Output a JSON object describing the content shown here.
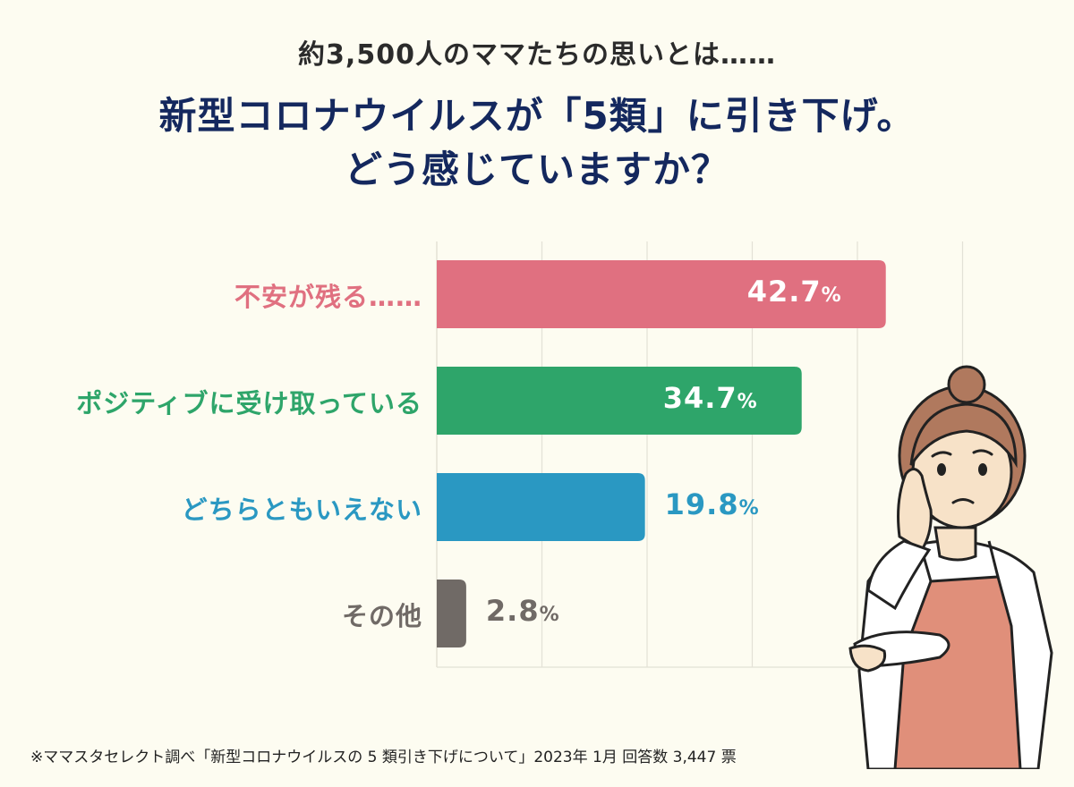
{
  "header": {
    "subtitle": "約3,500人のママたちの思いとは……",
    "title_line1": "新型コロナウイルスが「5類」に引き下げ。",
    "title_line2": "どう感じていますか？"
  },
  "chart_data": {
    "type": "bar",
    "orientation": "horizontal",
    "categories": [
      "不安が残る……",
      "ポジティブに受け取っている",
      "どちらともいえない",
      "その他"
    ],
    "values": [
      42.7,
      34.7,
      19.8,
      2.8
    ],
    "value_labels": [
      "42.7",
      "34.7",
      "19.8",
      "2.8"
    ],
    "unit": "%",
    "colors": [
      "#e07080",
      "#2ea56a",
      "#2a98c2",
      "#706a66"
    ],
    "xlim": [
      0,
      50
    ],
    "grid": true,
    "title": "新型コロナウイルスが「5類」に引き下げ。どう感じていますか？"
  },
  "footnote": "※ママスタセレクト調べ「新型コロナウイルスの 5 類引き下げについて」2023年 1月  回答数 3,447 票",
  "colors": {
    "background": "#fdfcf1",
    "title": "#14285e",
    "grid": "#e3e1d6",
    "apron": "#e08f7a"
  },
  "illustration": {
    "icon": "worried-mom-illustration"
  }
}
